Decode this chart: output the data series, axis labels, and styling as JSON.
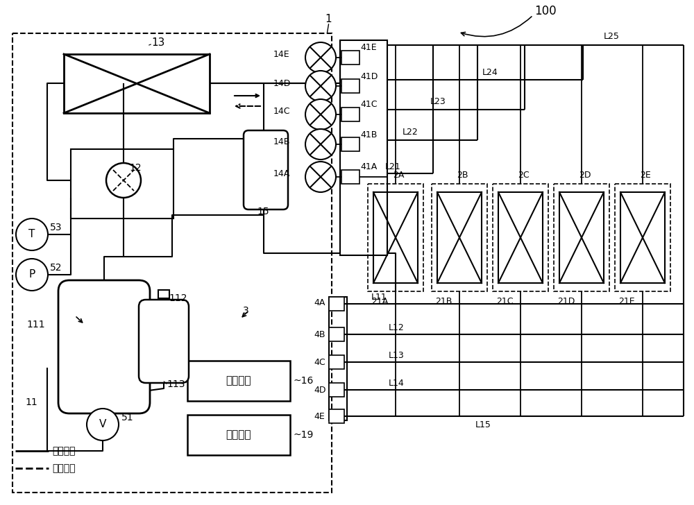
{
  "bg": "#ffffff",
  "fig_w": 10.0,
  "fig_h": 7.28,
  "dpi": 100,
  "labels": {
    "unit1": "1",
    "system": "100",
    "hex13": "13",
    "accum15": "15",
    "valve12": "12",
    "T53": "53",
    "P52": "52",
    "vessel11": "11",
    "v111": "111",
    "v112": "112",
    "v113": "113",
    "vmeter": "51",
    "ctrl": "控制装置",
    "ctrl_num": "~16",
    "comm": "通信装置",
    "comm_num": "~19",
    "cool": "制冷运转",
    "heat": "制热运转",
    "fans": [
      "14E",
      "14D",
      "14C",
      "14B",
      "14A"
    ],
    "valves": [
      "41E",
      "41D",
      "41C",
      "41B",
      "41A"
    ],
    "Llines": [
      "L25",
      "L24",
      "L23",
      "L22",
      "L21"
    ],
    "indoor": [
      "2A",
      "2B",
      "2C",
      "2D",
      "2E"
    ],
    "indoor_pipe": [
      "21A",
      "21B",
      "21C",
      "21D",
      "21E"
    ],
    "sensors": [
      "4A",
      "4B",
      "4C",
      "4D",
      "4E"
    ],
    "bottom": [
      "L11",
      "L12",
      "L13",
      "L14",
      "L15"
    ],
    "pipe3": "3"
  }
}
